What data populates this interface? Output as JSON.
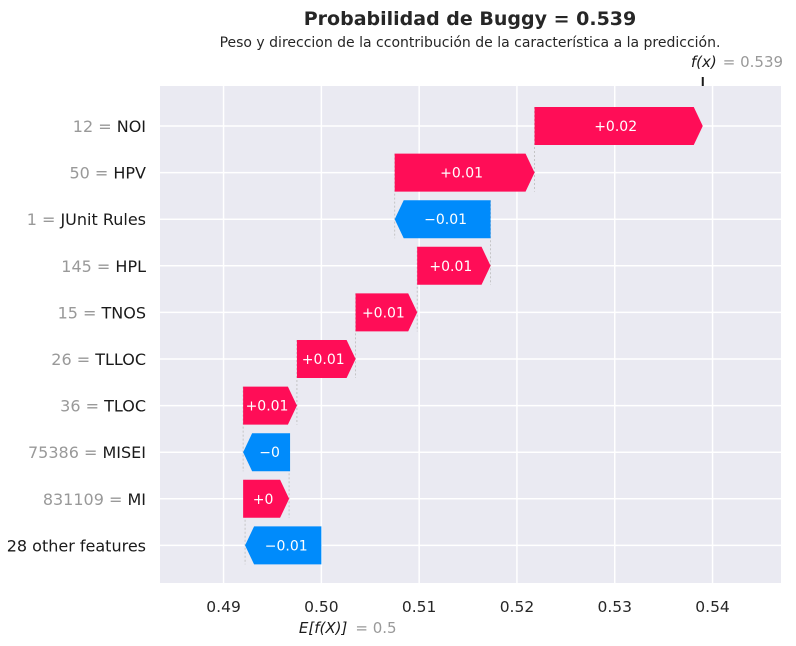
{
  "chart_data": {
    "type": "waterfall",
    "title": "Probabilidad de Buggy = 0.539",
    "subtitle": "Peso y direccion de la ccontribución de la característica a la predicción.",
    "base_value": 0.5,
    "base_label": "E[f(X)]",
    "base_value_text": "= 0.5",
    "output_value": 0.539,
    "output_label": "f(x)",
    "output_value_text": "= 0.539",
    "xlim": [
      0.4835,
      0.547
    ],
    "xticks": [
      0.49,
      0.5,
      0.51,
      0.52,
      0.53,
      0.54
    ],
    "xtick_labels": [
      "0.49",
      "0.50",
      "0.51",
      "0.52",
      "0.53",
      "0.54"
    ],
    "grid": true,
    "colors": {
      "positive": "#ff0d57",
      "negative": "#008bfb",
      "background": "#eaeaf2",
      "grid": "#ffffff",
      "connector": "#bbbbbb"
    },
    "features": [
      {
        "value": "12 =",
        "name": "NOI",
        "start": 0.5218,
        "end": 0.539,
        "label": "+0.02"
      },
      {
        "value": "50 =",
        "name": "HPV",
        "start": 0.5075,
        "end": 0.5218,
        "label": "+0.01"
      },
      {
        "value": "1 =",
        "name": "JUnit Rules",
        "start": 0.5173,
        "end": 0.5075,
        "label": "−0.01"
      },
      {
        "value": "145 =",
        "name": "HPL",
        "start": 0.5098,
        "end": 0.5173,
        "label": "+0.01"
      },
      {
        "value": "15 =",
        "name": "TNOS",
        "start": 0.5035,
        "end": 0.5098,
        "label": "+0.01"
      },
      {
        "value": "26 =",
        "name": "TLLOC",
        "start": 0.4975,
        "end": 0.5035,
        "label": "+0.01"
      },
      {
        "value": "36 =",
        "name": "TLOC",
        "start": 0.492,
        "end": 0.4975,
        "label": "+0.01"
      },
      {
        "value": "75386 =",
        "name": "MISEI",
        "start": 0.4968,
        "end": 0.492,
        "label": "−0"
      },
      {
        "value": "831109 =",
        "name": "MI",
        "start": 0.492,
        "end": 0.4967,
        "label": "+0"
      },
      {
        "value": "",
        "name": "28 other features",
        "start": 0.5,
        "end": 0.4922,
        "label": "−0.01"
      }
    ]
  }
}
